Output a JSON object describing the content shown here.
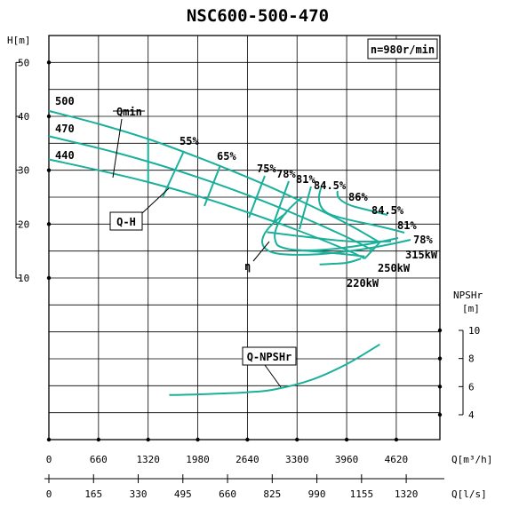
{
  "chart_data": {
    "type": "line",
    "title": "NSC600-500-470",
    "speed": "n=980r/min",
    "axes": {
      "flow_m3h": {
        "label": "Q[m³/h]",
        "ticks": [
          0,
          660,
          1320,
          1980,
          2640,
          3300,
          3960,
          4620
        ],
        "range": [
          0,
          5200
        ]
      },
      "flow_ls": {
        "label": "Q[l/s]",
        "ticks": [
          0,
          165,
          330,
          495,
          660,
          825,
          990,
          1155,
          1320
        ]
      },
      "head": {
        "label": "H[m]",
        "ticks": [
          10,
          20,
          30,
          40,
          50
        ],
        "range": [
          -20,
          55
        ]
      },
      "npshr": {
        "label_top": "NPSHr",
        "label_unit": "[m]",
        "ticks": [
          4,
          6,
          8,
          10
        ],
        "range": [
          4,
          10
        ]
      }
    },
    "grid": true,
    "impeller_labels": [
      "500",
      "470",
      "440"
    ],
    "qh_series": [
      {
        "name": "500",
        "x": [
          0,
          660,
          1320,
          1980,
          2640,
          3300,
          3960,
          4400
        ],
        "y": [
          41,
          38.6,
          35.8,
          32.4,
          28.7,
          24.6,
          20.1,
          16.6
        ]
      },
      {
        "name": "470",
        "x": [
          0,
          660,
          1320,
          1980,
          2640,
          3300,
          3960,
          4300
        ],
        "y": [
          36.3,
          34.1,
          31.6,
          28.7,
          25.4,
          21.7,
          17.6,
          15.2
        ]
      },
      {
        "name": "440",
        "x": [
          0,
          660,
          1320,
          1980,
          2640,
          3300,
          3960,
          4200
        ],
        "y": [
          32,
          30,
          27.8,
          25.2,
          22.2,
          18.9,
          15.2,
          13.6
        ]
      }
    ],
    "efficiency_labels": [
      "55%",
      "65%",
      "75%",
      "78%",
      "81%",
      "84.5%",
      "86%",
      "84.5%",
      "81%",
      "78%"
    ],
    "power_series": [
      {
        "name": "315kW",
        "x": [
          2900,
          3500,
          4000,
          4550
        ],
        "y": [
          18.5,
          17.5,
          16.8,
          16.8
        ]
      },
      {
        "name": "250kW",
        "x": [
          3300,
          3800,
          4200
        ],
        "y": [
          15.2,
          14.6,
          14.0
        ]
      },
      {
        "name": "220kW",
        "x": [
          3600,
          3950,
          4150
        ],
        "y": [
          12.5,
          12.8,
          13.6
        ]
      }
    ],
    "npshr_series": {
      "name": "Q-NPSHr",
      "x": [
        1600,
        2000,
        2640,
        3000,
        3500,
        3960,
        4400
      ],
      "y": [
        5.4,
        5.45,
        5.6,
        5.8,
        6.5,
        7.6,
        9.0
      ]
    },
    "annotations": [
      "Qmin",
      "Q-H",
      "η",
      "Q-NPSHr"
    ]
  }
}
